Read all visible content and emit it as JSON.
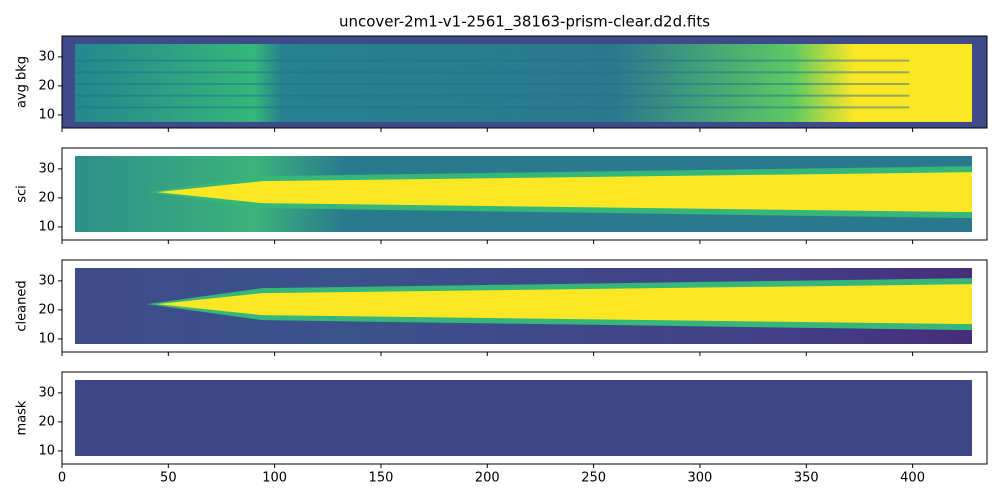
{
  "chart_data": [
    {
      "type": "image",
      "title": "uncover-2m1-v1-2561_38163-prism-clear.d2d.fits",
      "ylabel": "avg bkg",
      "xlim": [
        0,
        435
      ],
      "xticks": [
        0,
        50,
        100,
        150,
        200,
        250,
        300,
        350,
        400
      ],
      "ylim": [
        5.5,
        37.2
      ],
      "yticks": [
        10,
        20,
        30
      ]
    },
    {
      "type": "image",
      "ylabel": "sci",
      "xlim": [
        0,
        435
      ],
      "xticks": [
        0,
        50,
        100,
        150,
        200,
        250,
        300,
        350,
        400
      ],
      "ylim": [
        5.5,
        37.2
      ],
      "yticks": [
        10,
        20,
        30
      ]
    },
    {
      "type": "image",
      "ylabel": "cleaned",
      "xlim": [
        0,
        435
      ],
      "xticks": [
        0,
        50,
        100,
        150,
        200,
        250,
        300,
        350,
        400
      ],
      "ylim": [
        5.5,
        37.2
      ],
      "yticks": [
        10,
        20,
        30
      ]
    },
    {
      "type": "image",
      "ylabel": "mask",
      "xlim": [
        0,
        435
      ],
      "xticks": [
        0,
        50,
        100,
        150,
        200,
        250,
        300,
        350,
        400
      ],
      "ylim": [
        5.5,
        37.2
      ],
      "yticks": [
        10,
        20,
        30
      ]
    }
  ]
}
